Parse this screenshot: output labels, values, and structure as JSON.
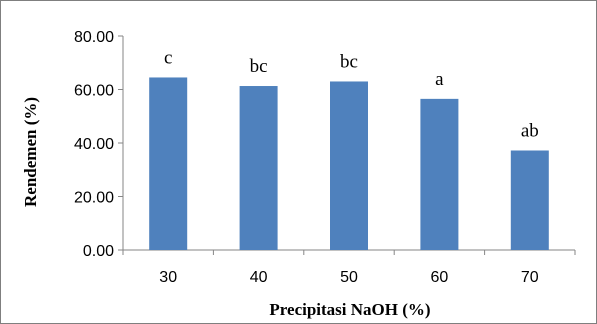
{
  "chart_data": {
    "type": "bar",
    "xlabel": "Precipitasi NaOH (%)",
    "ylabel": "Rendemen (%)",
    "categories": [
      "30",
      "40",
      "50",
      "60",
      "70"
    ],
    "values": [
      64.5,
      61.3,
      63.0,
      56.5,
      37.2
    ],
    "data_labels": [
      "c",
      "bc",
      "bc",
      "a",
      "ab"
    ],
    "ylim": [
      0,
      80
    ],
    "yticks": [
      "0.00",
      "20.00",
      "40.00",
      "60.00",
      "80.00"
    ],
    "ytick_values": [
      0,
      20,
      40,
      60,
      80
    ],
    "grid": false,
    "legend": "none",
    "bar_color": "#4f81bd"
  }
}
